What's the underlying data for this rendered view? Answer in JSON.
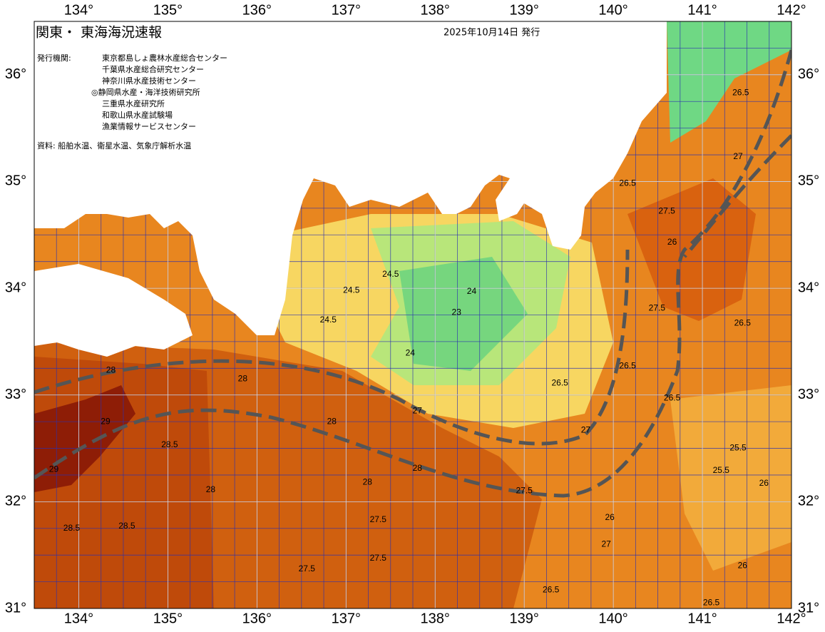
{
  "header": {
    "title": "関東・ 東海海況速報",
    "date": "2025年10月14日 発行"
  },
  "agencies_label": "発行機関:",
  "agencies": [
    "東京都島しょ農林水産総合センター",
    "千葉県水産総合研究センター",
    "神奈川県水産技術センター",
    "◎静岡県水産・海洋技術研究所",
    "三重県水産研究所",
    "和歌山県水産試験場",
    "漁業情報サービスセンター"
  ],
  "source": "資料: 船舶水温、衛星水温、気象庁解析水温",
  "map": {
    "xlim": [
      133.5,
      142
    ],
    "ylim": [
      31,
      36.5
    ],
    "xticks": [
      {
        "value": 134,
        "label": "134°"
      },
      {
        "value": 135,
        "label": "135°"
      },
      {
        "value": 136,
        "label": "136°"
      },
      {
        "value": 137,
        "label": "137°"
      },
      {
        "value": 138,
        "label": "138°"
      },
      {
        "value": 139,
        "label": "139°"
      },
      {
        "value": 140,
        "label": "140°"
      },
      {
        "value": 141,
        "label": "141°"
      },
      {
        "value": 142,
        "label": "142°"
      }
    ],
    "yticks": [
      {
        "value": 31,
        "label": "31°"
      },
      {
        "value": 32,
        "label": "32°"
      },
      {
        "value": 33,
        "label": "33°"
      },
      {
        "value": 34,
        "label": "34°"
      },
      {
        "value": 35,
        "label": "35°"
      },
      {
        "value": 36,
        "label": "36°"
      }
    ],
    "contour_labels": [
      {
        "lon": 134.36,
        "lat": 33.23,
        "value": 28
      },
      {
        "lon": 134.3,
        "lat": 32.75,
        "value": 29
      },
      {
        "lon": 133.72,
        "lat": 32.3,
        "value": 29
      },
      {
        "lon": 135.02,
        "lat": 32.53,
        "value": 28.5
      },
      {
        "lon": 135.48,
        "lat": 32.11,
        "value": 28
      },
      {
        "lon": 134.54,
        "lat": 31.77,
        "value": 28.5
      },
      {
        "lon": 133.92,
        "lat": 31.75,
        "value": 28.5
      },
      {
        "lon": 135.84,
        "lat": 33.15,
        "value": 28
      },
      {
        "lon": 136.84,
        "lat": 32.75,
        "value": 28
      },
      {
        "lon": 137.8,
        "lat": 32.31,
        "value": 28
      },
      {
        "lon": 137.24,
        "lat": 32.18,
        "value": 28
      },
      {
        "lon": 137.36,
        "lat": 31.83,
        "value": 27.5
      },
      {
        "lon": 137.36,
        "lat": 31.47,
        "value": 27.5
      },
      {
        "lon": 136.56,
        "lat": 31.37,
        "value": 27.5
      },
      {
        "lon": 137.8,
        "lat": 32.85,
        "value": 27
      },
      {
        "lon": 137.5,
        "lat": 34.13,
        "value": 24.5
      },
      {
        "lon": 136.8,
        "lat": 33.7,
        "value": 24.5
      },
      {
        "lon": 137.06,
        "lat": 33.98,
        "value": 24.5
      },
      {
        "lon": 138.24,
        "lat": 33.77,
        "value": 23
      },
      {
        "lon": 137.72,
        "lat": 33.39,
        "value": 24
      },
      {
        "lon": 139.4,
        "lat": 33.11,
        "value": 26.5
      },
      {
        "lon": 139.69,
        "lat": 32.67,
        "value": 27
      },
      {
        "lon": 140.16,
        "lat": 33.27,
        "value": 26.5
      },
      {
        "lon": 140.49,
        "lat": 33.81,
        "value": 27.5
      },
      {
        "lon": 140.66,
        "lat": 34.43,
        "value": 26
      },
      {
        "lon": 141.4,
        "lat": 35.23,
        "value": 27
      },
      {
        "lon": 141.43,
        "lat": 35.83,
        "value": 26.5
      },
      {
        "lon": 140.16,
        "lat": 34.98,
        "value": 26.5
      },
      {
        "lon": 140.6,
        "lat": 34.72,
        "value": 27.5
      },
      {
        "lon": 140.66,
        "lat": 32.97,
        "value": 26.5
      },
      {
        "lon": 141.4,
        "lat": 32.5,
        "value": 25.5
      },
      {
        "lon": 141.21,
        "lat": 32.29,
        "value": 25.5
      },
      {
        "lon": 141.69,
        "lat": 32.17,
        "value": 26
      },
      {
        "lon": 141.45,
        "lat": 31.4,
        "value": 26
      },
      {
        "lon": 139.3,
        "lat": 31.17,
        "value": 26.5
      },
      {
        "lon": 141.1,
        "lat": 31.05,
        "value": 26.5
      },
      {
        "lon": 141.45,
        "lat": 33.67,
        "value": 26.5
      },
      {
        "lon": 139.92,
        "lat": 31.6,
        "value": 27
      },
      {
        "lon": 139.96,
        "lat": 31.85,
        "value": 26
      },
      {
        "lon": 139.0,
        "lat": 32.1,
        "value": 27.5
      },
      {
        "lon": 138.41,
        "lat": 33.97,
        "value": 24
      }
    ]
  }
}
